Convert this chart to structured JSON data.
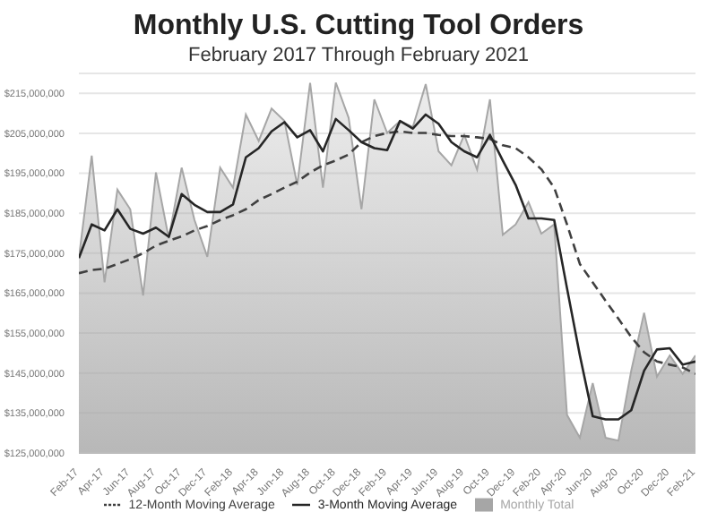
{
  "chart_data": {
    "type": "line",
    "title": "Monthly U.S. Cutting Tool Orders",
    "subtitle": "February 2017 Through February 2021",
    "categories": [
      "Feb-17",
      null,
      "Apr-17",
      null,
      "Jun-17",
      null,
      "Aug-17",
      null,
      "Oct-17",
      null,
      "Dec-17",
      null,
      "Feb-18",
      null,
      "Apr-18",
      null,
      "Jun-18",
      null,
      "Aug-18",
      null,
      "Oct-18",
      null,
      "Dec-18",
      null,
      "Feb-19",
      null,
      "Apr-19",
      null,
      "Jun-19",
      null,
      "Aug-19",
      null,
      "Oct-19",
      null,
      "Dec-19",
      null,
      "Feb-20",
      null,
      "Apr-20",
      null,
      "Jun-20",
      null,
      "Aug-20",
      null,
      "Oct-20",
      null,
      "Dec-20",
      null,
      "Feb-21"
    ],
    "series": [
      {
        "name": "Monthly Total",
        "type": "area",
        "color": "#a6a6a6",
        "values": [
          173800000,
          199400000,
          167700000,
          190900000,
          186000000,
          164400000,
          195200000,
          178700000,
          196400000,
          183300000,
          174100000,
          196400000,
          191400000,
          209700000,
          203100000,
          211200000,
          208100000,
          192100000,
          217600000,
          191400000,
          217700000,
          208900000,
          186000000,
          213500000,
          205100000,
          208100000,
          206600000,
          217300000,
          200500000,
          197000000,
          204600000,
          195900000,
          213500000,
          179600000,
          182200000,
          187800000,
          179900000,
          182200000,
          134500000,
          128800000,
          142500000,
          128800000,
          128100000,
          145600000,
          160100000,
          144100000,
          149400000,
          144800000,
          149400000
        ]
      },
      {
        "name": "12-Month Moving Average",
        "line_style": "dashed",
        "color": "#404040",
        "values": [
          170000000,
          170800000,
          171100000,
          172300000,
          173500000,
          175000000,
          176900000,
          178100000,
          179200000,
          180700000,
          181800000,
          183300000,
          184500000,
          186000000,
          188300000,
          189800000,
          191400000,
          192900000,
          195200000,
          197000000,
          198200000,
          199700000,
          202800000,
          204300000,
          205100000,
          205500000,
          205100000,
          205100000,
          204600000,
          204300000,
          204300000,
          204000000,
          203600000,
          202000000,
          201300000,
          199000000,
          196000000,
          191400000,
          182200000,
          172300000,
          167700000,
          163100000,
          158600000,
          154000000,
          150200000,
          147900000,
          147100000,
          146400000,
          144800000
        ]
      },
      {
        "name": "3-Month Moving Average",
        "line_style": "solid",
        "color": "#262626",
        "values": [
          173800000,
          182200000,
          180700000,
          186000000,
          181100000,
          179900000,
          181400000,
          179100000,
          189800000,
          187100000,
          185300000,
          185300000,
          187200000,
          199000000,
          201300000,
          205500000,
          207800000,
          204000000,
          205800000,
          200500000,
          208600000,
          205800000,
          202800000,
          201300000,
          200800000,
          208100000,
          206200000,
          209700000,
          207400000,
          202800000,
          200500000,
          199000000,
          204600000,
          198200000,
          192100000,
          183700000,
          183700000,
          183300000,
          166200000,
          149400000,
          134200000,
          133400000,
          133400000,
          135700000,
          145600000,
          150900000,
          151200000,
          147100000,
          147900000
        ]
      }
    ],
    "ylim": [
      125000000,
      220000000
    ],
    "yticks": [
      {
        "value": 125000000,
        "label": "$125,000,000"
      },
      {
        "value": 135000000,
        "label": "$135,000,000"
      },
      {
        "value": 145000000,
        "label": "$145,000,000"
      },
      {
        "value": 155000000,
        "label": "$155,000,000"
      },
      {
        "value": 165000000,
        "label": "$165,000,000"
      },
      {
        "value": 175000000,
        "label": "$175,000,000"
      },
      {
        "value": 185000000,
        "label": "$185,000,000"
      },
      {
        "value": 195000000,
        "label": "$195,000,000"
      },
      {
        "value": 205000000,
        "label": "$205,000,000"
      },
      {
        "value": 215000000,
        "label": "$215,000,000"
      }
    ],
    "grid": "y",
    "legend": "bottom",
    "marker": "none"
  }
}
